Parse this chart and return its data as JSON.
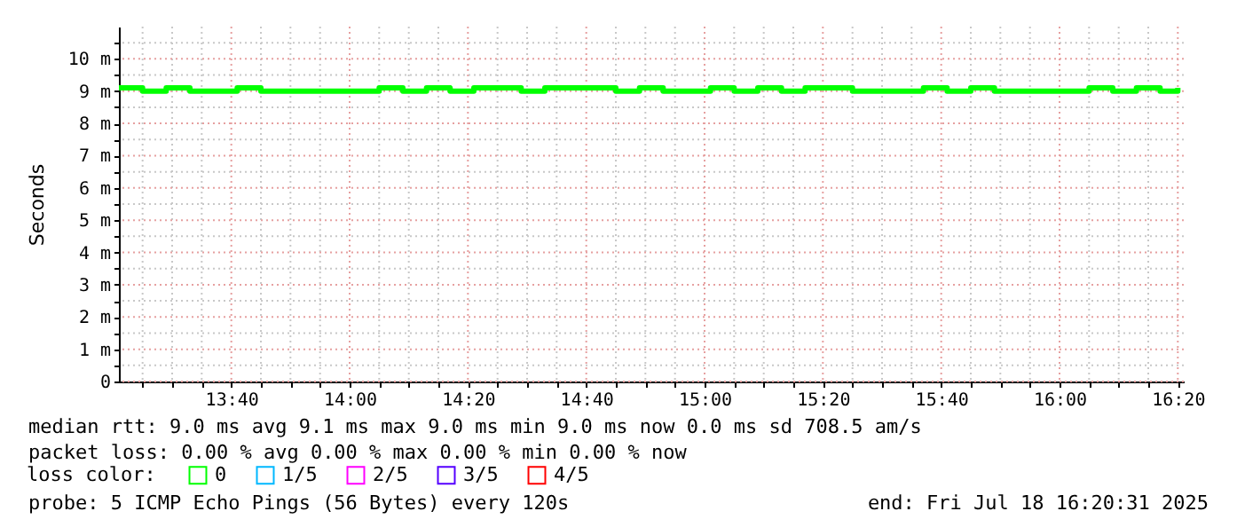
{
  "chart_data": {
    "type": "step",
    "ylabel": "Seconds",
    "legend_title": "loss color:",
    "legend": "bottom",
    "grid": true,
    "marker": "none",
    "x": [
      13.35,
      13.4167,
      13.4833,
      13.55,
      13.6167,
      13.6833,
      13.75,
      13.8167,
      13.8833,
      13.95,
      14.0167,
      14.0833,
      14.15,
      14.2167,
      14.2833,
      14.35,
      14.4167,
      14.4833,
      14.55,
      14.6167,
      14.6833,
      14.75,
      14.8167,
      14.8833,
      14.95,
      15.0167,
      15.0833,
      15.15,
      15.2167,
      15.2833,
      15.35,
      15.4167,
      15.4833,
      15.55,
      15.6167,
      15.6833,
      15.75,
      15.8167,
      15.8833,
      15.95,
      16.0167,
      16.0833,
      16.15,
      16.2167,
      16.2833,
      16.3333
    ],
    "series": [
      {
        "name": "0",
        "color": "#00ff00",
        "values": [
          9.1,
          9.0,
          9.1,
          9.0,
          9.0,
          9.1,
          9.0,
          9.0,
          9.0,
          9.0,
          9.0,
          9.1,
          9.0,
          9.1,
          9.0,
          9.1,
          9.1,
          9.0,
          9.1,
          9.1,
          9.1,
          9.0,
          9.1,
          9.0,
          9.0,
          9.1,
          9.0,
          9.1,
          9.0,
          9.1,
          9.1,
          9.0,
          9.0,
          9.0,
          9.1,
          9.0,
          9.1,
          9.0,
          9.0,
          9.0,
          9.0,
          9.1,
          9.0,
          9.1,
          9.0,
          9.1
        ]
      },
      {
        "name": "1/5",
        "color": "#00b8ff",
        "values": [
          null,
          null,
          null,
          null,
          null,
          null,
          null,
          null,
          null,
          null,
          null,
          null,
          null,
          null,
          null,
          null,
          null,
          null,
          null,
          null,
          null,
          null,
          null,
          null,
          null,
          null,
          null,
          null,
          null,
          null,
          null,
          null,
          null,
          null,
          null,
          null,
          null,
          null,
          null,
          null,
          null,
          null,
          null,
          null,
          null,
          null
        ]
      },
      {
        "name": "2/5",
        "color": "#ff00ff",
        "values": [
          null,
          null,
          null,
          null,
          null,
          null,
          null,
          null,
          null,
          null,
          null,
          null,
          null,
          null,
          null,
          null,
          null,
          null,
          null,
          null,
          null,
          null,
          null,
          null,
          null,
          null,
          null,
          null,
          null,
          null,
          null,
          null,
          null,
          null,
          null,
          null,
          null,
          null,
          null,
          null,
          null,
          null,
          null,
          null,
          null,
          null
        ]
      },
      {
        "name": "3/5",
        "color": "#5500ff",
        "values": [
          null,
          null,
          null,
          null,
          null,
          null,
          null,
          null,
          null,
          null,
          null,
          null,
          null,
          null,
          null,
          null,
          null,
          null,
          null,
          null,
          null,
          null,
          null,
          null,
          null,
          null,
          null,
          null,
          null,
          null,
          null,
          null,
          null,
          null,
          null,
          null,
          null,
          null,
          null,
          null,
          null,
          null,
          null,
          null,
          null,
          null
        ]
      },
      {
        "name": "4/5",
        "color": "#ff0000",
        "values": [
          null,
          null,
          null,
          null,
          null,
          null,
          null,
          null,
          null,
          null,
          null,
          null,
          null,
          null,
          null,
          null,
          null,
          null,
          null,
          null,
          null,
          null,
          null,
          null,
          null,
          null,
          null,
          null,
          null,
          null,
          null,
          null,
          null,
          null,
          null,
          null,
          null,
          null,
          null,
          null,
          null,
          null,
          null,
          null,
          null,
          null
        ]
      }
    ],
    "xlim": [
      13.35,
      16.35
    ],
    "xticks": [
      {
        "value": 13.4167,
        "label": null
      },
      {
        "value": 13.5,
        "label": null
      },
      {
        "value": 13.5833,
        "label": null
      },
      {
        "value": 13.6667,
        "label": "13:40"
      },
      {
        "value": 13.75,
        "label": null
      },
      {
        "value": 13.8333,
        "label": null
      },
      {
        "value": 13.9167,
        "label": null
      },
      {
        "value": 14,
        "label": "14:00"
      },
      {
        "value": 14.0833,
        "label": null
      },
      {
        "value": 14.1667,
        "label": null
      },
      {
        "value": 14.25,
        "label": null
      },
      {
        "value": 14.3333,
        "label": "14:20"
      },
      {
        "value": 14.4167,
        "label": null
      },
      {
        "value": 14.5,
        "label": null
      },
      {
        "value": 14.5833,
        "label": null
      },
      {
        "value": 14.6667,
        "label": "14:40"
      },
      {
        "value": 14.75,
        "label": null
      },
      {
        "value": 14.8333,
        "label": null
      },
      {
        "value": 14.9167,
        "label": null
      },
      {
        "value": 15,
        "label": "15:00"
      },
      {
        "value": 15.0833,
        "label": null
      },
      {
        "value": 15.1667,
        "label": null
      },
      {
        "value": 15.25,
        "label": null
      },
      {
        "value": 15.3333,
        "label": "15:20"
      },
      {
        "value": 15.4167,
        "label": null
      },
      {
        "value": 15.5,
        "label": null
      },
      {
        "value": 15.5833,
        "label": null
      },
      {
        "value": 15.6667,
        "label": "15:40"
      },
      {
        "value": 15.75,
        "label": null
      },
      {
        "value": 15.8333,
        "label": null
      },
      {
        "value": 15.9167,
        "label": null
      },
      {
        "value": 16,
        "label": "16:00"
      },
      {
        "value": 16.0833,
        "label": null
      },
      {
        "value": 16.1667,
        "label": null
      },
      {
        "value": 16.25,
        "label": null
      },
      {
        "value": 16.3333,
        "label": "16:20"
      }
    ],
    "ylim": [
      0,
      11
    ],
    "yticks": [
      0,
      {
        "value": 0.5,
        "label": null
      },
      {
        "value": 1,
        "label": "1 m"
      },
      {
        "value": 1.5,
        "label": null
      },
      {
        "value": 2,
        "label": "2 m"
      },
      {
        "value": 2.5,
        "label": null
      },
      {
        "value": 3,
        "label": "3 m"
      },
      {
        "value": 3.5,
        "label": null
      },
      {
        "value": 4,
        "label": "4 m"
      },
      {
        "value": 4.5,
        "label": null
      },
      {
        "value": 5,
        "label": "5 m"
      },
      {
        "value": 5.5,
        "label": null
      },
      {
        "value": 6,
        "label": "6 m"
      },
      {
        "value": 6.5,
        "label": null
      },
      {
        "value": 7,
        "label": "7 m"
      },
      {
        "value": 7.5,
        "label": null
      },
      {
        "value": 8,
        "label": "8 m"
      },
      {
        "value": 8.5,
        "label": null
      },
      {
        "value": 9,
        "label": "9 m"
      },
      {
        "value": 9.5,
        "label": null
      },
      {
        "value": 10,
        "label": "10 m"
      },
      {
        "value": 10.5,
        "label": null
      }
    ],
    "annotations": [
      "median rtt: 9.0 ms avg 9.1 ms max 9.0 ms min 9.0 ms now 0.0 ms sd 708.5 am/s",
      "packet loss: 0.00 % avg 0.00 % max 0.00 % min 0.00 % now",
      "probe: 5 ICMP Echo Pings (56 Bytes) every 120s",
      "end: Fri Jul 18 16:20:31 2025"
    ]
  }
}
